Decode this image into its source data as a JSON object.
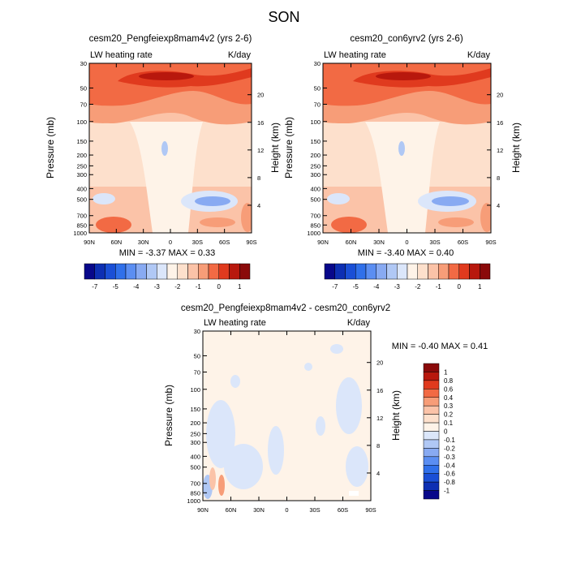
{
  "page_title": "SON",
  "colors": {
    "deep_blue": "#0d0d8c",
    "light_blue": "#cfe2fb",
    "white": "#ffffff",
    "peach": "#fde5d2",
    "light_salmon": "#f7ae8c",
    "orange_red": "#f24a1f",
    "dark_red": "#8c0a0a"
  },
  "chart_data": [
    {
      "id": "exp",
      "type": "heatmap",
      "title": "cesm20_Pengfeiexp8mam4v2 (yrs 2-6)",
      "left_label": "LW heating rate",
      "right_label": "K/day",
      "ylabel": "Pressure (mb)",
      "y2label": "Height (km)",
      "xlim": [
        90,
        -90
      ],
      "xticks": [
        90,
        60,
        30,
        0,
        -30,
        -60,
        -90
      ],
      "xtick_labels": [
        "90N",
        "60N",
        "30N",
        "0",
        "30S",
        "60S",
        "90S"
      ],
      "yticks": [
        30,
        50,
        70,
        100,
        150,
        200,
        250,
        300,
        400,
        500,
        700,
        850,
        1000
      ],
      "ytick_labels": [
        "30",
        "50",
        "70",
        "100",
        "150",
        "200",
        "250",
        "300",
        "400",
        "500",
        "700",
        "850",
        "1000"
      ],
      "ylim": [
        30,
        1000
      ],
      "height_ticks_km": [
        4,
        8,
        12,
        16,
        20
      ],
      "height_tick_labels": [
        "4",
        "8",
        "12",
        "16",
        "20"
      ],
      "min": -3.37,
      "max": 0.33,
      "stats_label": "MIN =  -3.37  MAX =   0.33",
      "colorbar": {
        "labels": [
          "-7",
          "-5",
          "-4",
          "-3",
          "-2",
          "-1",
          "0",
          "1"
        ],
        "colors": [
          "#08088a",
          "#0d2fb3",
          "#1a4fd6",
          "#3070ea",
          "#5b8ef2",
          "#88aaf2",
          "#b0c8f5",
          "#dbe6fa",
          "#fef3e8",
          "#fde0cc",
          "#fbc3a8",
          "#f79d78",
          "#f26a44",
          "#e03a1e",
          "#b8180d",
          "#8a0a0a"
        ]
      }
    },
    {
      "id": "ctl",
      "type": "heatmap",
      "title": "cesm20_con6yrv2 (yrs 2-6)",
      "left_label": "LW heating rate",
      "right_label": "K/day",
      "ylabel": "Pressure (mb)",
      "y2label": "Height (km)",
      "xlim": [
        90,
        -90
      ],
      "xticks": [
        90,
        60,
        30,
        0,
        -30,
        -60,
        -90
      ],
      "xtick_labels": [
        "90N",
        "60N",
        "30N",
        "0",
        "30S",
        "60S",
        "90S"
      ],
      "yticks": [
        30,
        50,
        70,
        100,
        150,
        200,
        250,
        300,
        400,
        500,
        700,
        850,
        1000
      ],
      "ytick_labels": [
        "30",
        "50",
        "70",
        "100",
        "150",
        "200",
        "250",
        "300",
        "400",
        "500",
        "700",
        "850",
        "1000"
      ],
      "ylim": [
        30,
        1000
      ],
      "height_ticks_km": [
        4,
        8,
        12,
        16,
        20
      ],
      "height_tick_labels": [
        "4",
        "8",
        "12",
        "16",
        "20"
      ],
      "min": -3.4,
      "max": 0.4,
      "stats_label": "MIN =  -3.40  MAX =   0.40",
      "colorbar": {
        "labels": [
          "-7",
          "-5",
          "-4",
          "-3",
          "-2",
          "-1",
          "0",
          "1"
        ],
        "colors": [
          "#08088a",
          "#0d2fb3",
          "#1a4fd6",
          "#3070ea",
          "#5b8ef2",
          "#88aaf2",
          "#b0c8f5",
          "#dbe6fa",
          "#fef3e8",
          "#fde0cc",
          "#fbc3a8",
          "#f79d78",
          "#f26a44",
          "#e03a1e",
          "#b8180d",
          "#8a0a0a"
        ]
      }
    },
    {
      "id": "diff",
      "type": "heatmap",
      "title": "cesm20_Pengfeiexp8mam4v2 - cesm20_con6yrv2",
      "left_label": "LW heating rate",
      "right_label": "K/day",
      "ylabel": "Pressure (mb)",
      "y2label": "Height (km)",
      "xlim": [
        90,
        -90
      ],
      "xticks": [
        90,
        60,
        30,
        0,
        -30,
        -60,
        -90
      ],
      "xtick_labels": [
        "90N",
        "60N",
        "30N",
        "0",
        "30S",
        "60S",
        "90S"
      ],
      "yticks": [
        30,
        50,
        70,
        100,
        150,
        200,
        250,
        300,
        400,
        500,
        700,
        850,
        1000
      ],
      "ytick_labels": [
        "30",
        "50",
        "70",
        "100",
        "150",
        "200",
        "250",
        "300",
        "400",
        "500",
        "700",
        "850",
        "1000"
      ],
      "ylim": [
        30,
        1000
      ],
      "height_ticks_km": [
        4,
        8,
        12,
        16,
        20
      ],
      "height_tick_labels": [
        "4",
        "8",
        "12",
        "16",
        "20"
      ],
      "min": -0.4,
      "max": 0.41,
      "stats_label": "MIN =  -0.40  MAX =   0.41",
      "colorbar": {
        "labels": [
          "1",
          "0.8",
          "0.6",
          "0.4",
          "0.3",
          "0.2",
          "0.1",
          "0",
          "-0.1",
          "-0.2",
          "-0.3",
          "-0.4",
          "-0.6",
          "-0.8",
          "-1"
        ],
        "colors": [
          "#8a0a0a",
          "#b8180d",
          "#e03a1e",
          "#f26a44",
          "#f79d78",
          "#fbc3a8",
          "#fde0cc",
          "#fef3e8",
          "#dbe6fa",
          "#b0c8f5",
          "#88aaf2",
          "#5b8ef2",
          "#3070ea",
          "#1a4fd6",
          "#0d2fb3",
          "#08088a"
        ]
      }
    }
  ]
}
